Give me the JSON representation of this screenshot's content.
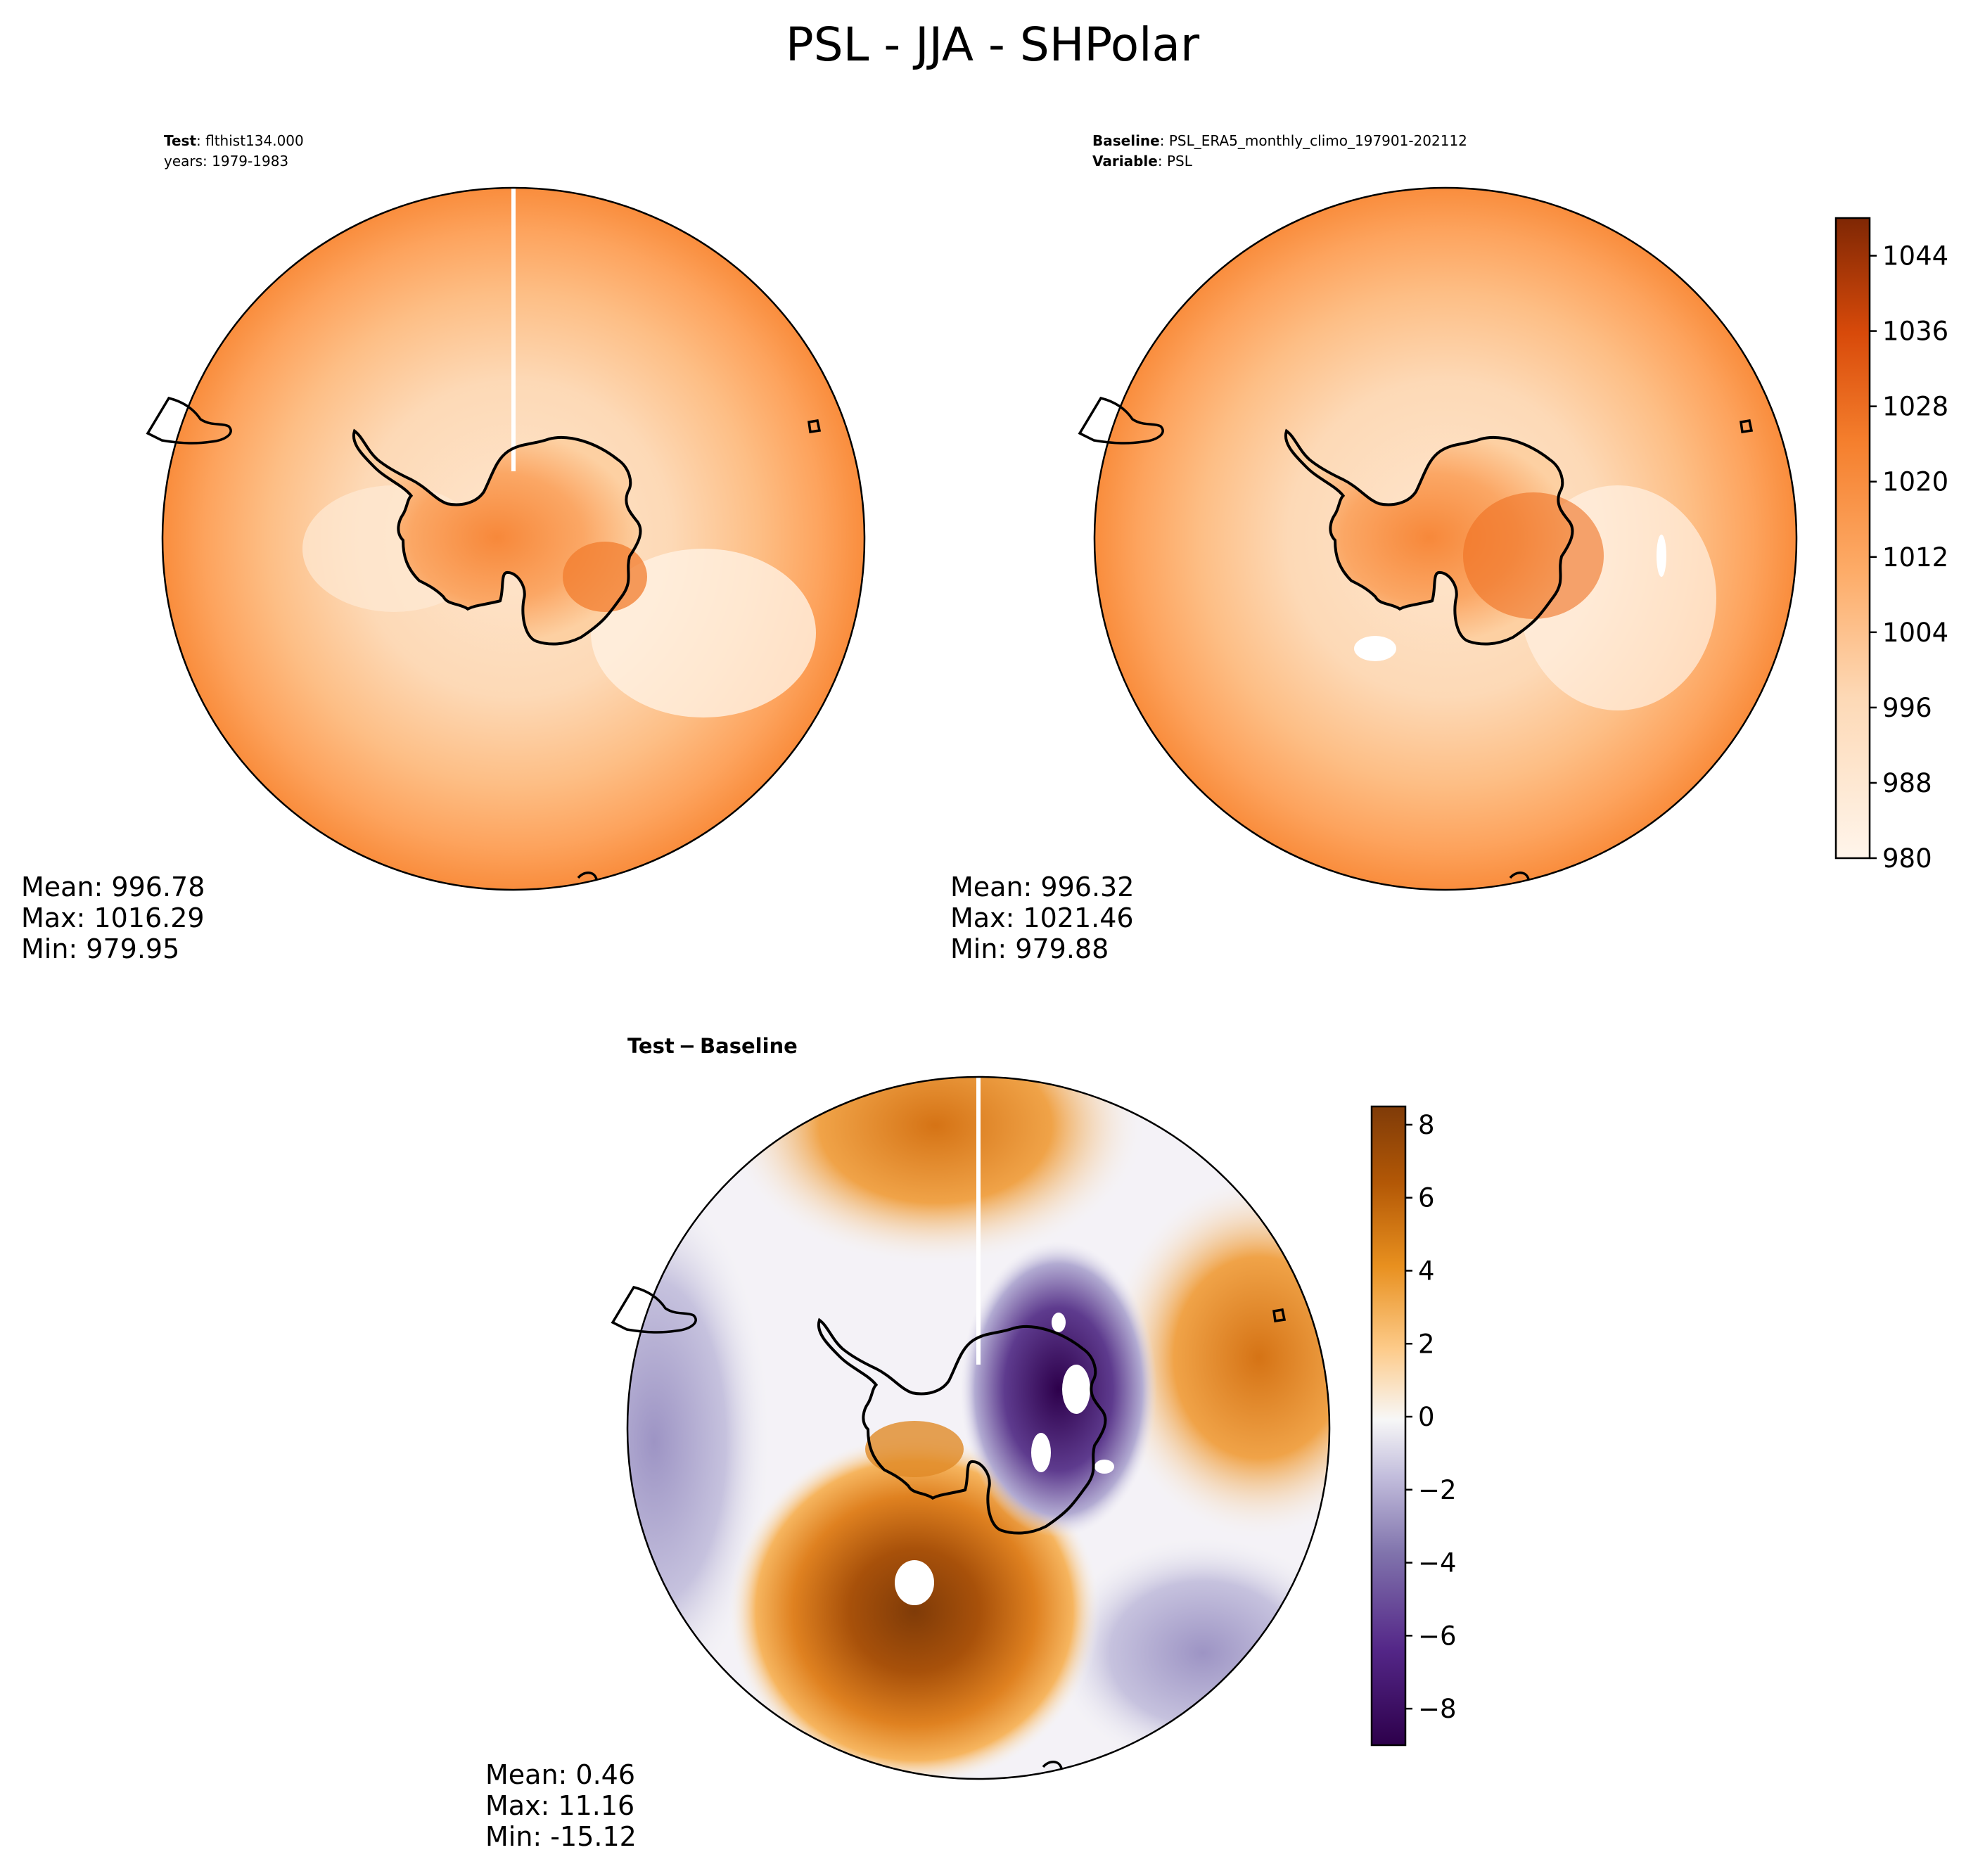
{
  "figure": {
    "title": "PSL - JJA - SHPolar"
  },
  "test_panel": {
    "label_bold": "Test",
    "label_text": ": flthist134.000",
    "years": "years: 1979-1983",
    "stats": {
      "mean": "Mean: 996.78",
      "max": "Max: 1016.29",
      "min": "Min: 979.95"
    }
  },
  "baseline_panel": {
    "label_bold": "Baseline",
    "label_text": ": PSL_ERA5_monthly_climo_197901-202112",
    "variable_bold": "Variable",
    "variable_text": ": PSL",
    "stats": {
      "mean": "Mean: 996.32",
      "max": "Max: 1021.46",
      "min": "Min: 979.88"
    }
  },
  "diff_panel": {
    "title_a": "Test",
    "title_op": "−",
    "title_b": "Baseline",
    "stats": {
      "mean": "Mean:  0.46",
      "max": "Max: 11.16",
      "min": "Min: -15.12"
    }
  },
  "colors": {
    "psl_low": "#fff5eb",
    "psl_high": "#7f2704",
    "diff_neg": "#2d004b",
    "diff_zero": "#f7f7f7",
    "diff_pos": "#7f3b08",
    "coast": "#000000"
  },
  "chart_data": [
    {
      "type": "heatmap",
      "name": "test",
      "projection": "south-polar-stereographic",
      "colormap": "Oranges",
      "vmin": 980,
      "vmax": 1048,
      "mean": 996.78,
      "max": 1016.29,
      "min": 979.95
    },
    {
      "type": "heatmap",
      "name": "baseline",
      "projection": "south-polar-stereographic",
      "colormap": "Oranges",
      "vmin": 980,
      "vmax": 1048,
      "mean": 996.32,
      "max": 1021.46,
      "min": 979.88,
      "colorbar": {
        "ticks": [
          980,
          988,
          996,
          1004,
          1012,
          1020,
          1028,
          1036,
          1044
        ],
        "tick_labels": [
          "980",
          "988",
          "996",
          "1004",
          "1012",
          "1020",
          "1028",
          "1036",
          "1044"
        ],
        "range": [
          980,
          1048
        ],
        "levels": 34
      }
    },
    {
      "type": "heatmap",
      "name": "difference",
      "projection": "south-polar-stereographic",
      "colormap": "PuOr_r",
      "vmin": -9,
      "vmax": 8.5,
      "mean": 0.46,
      "max": 11.16,
      "min": -15.12,
      "colorbar": {
        "ticks": [
          -8,
          -6,
          -4,
          -2,
          0,
          2,
          4,
          6,
          8
        ],
        "tick_labels": [
          "−8",
          "−6",
          "−4",
          "−2",
          "0",
          "2",
          "4",
          "6",
          "8"
        ],
        "range": [
          -9,
          8.5
        ],
        "levels": 35
      }
    }
  ]
}
